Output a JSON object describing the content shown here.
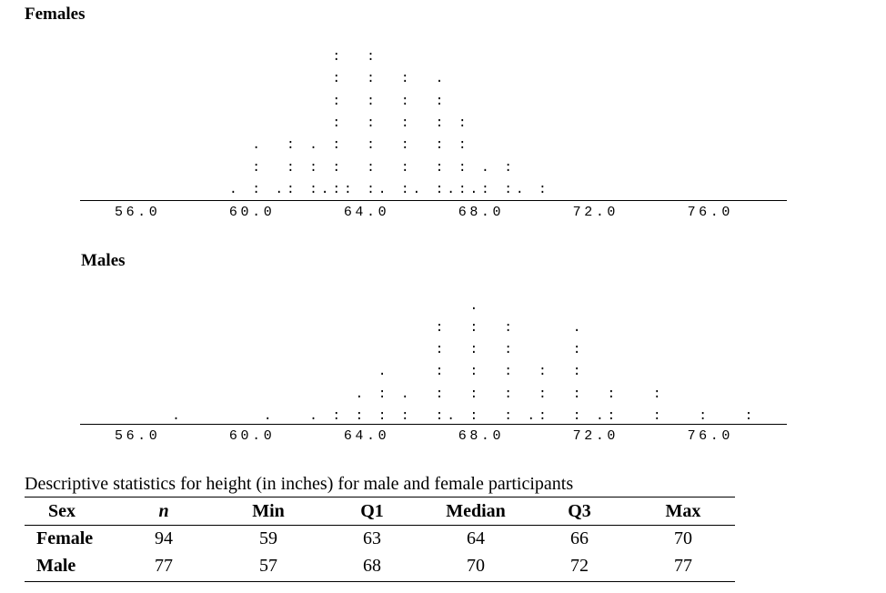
{
  "plots": {
    "females": {
      "title": "Females",
      "rows": [
        "                   :  :",
        "                   :  :  :  .",
        "                   :  :  :  :",
        "                   :  :  :  : :",
        "            .  : . :  :  :  : :",
        "            :  : : :  :  :  : : . :",
        "          . : .: :.:: :. :. :.:.: :. :"
      ],
      "axis_labels": "56.0      60.0      64.0      68.0      72.0      76.0"
    },
    "males": {
      "title": "Males",
      "rows": [
        "                               .",
        "                            :  :  :     .",
        "                            :  :  :     :",
        "                       .    :  :  :  :  :",
        "                     . : .  :  :  :  :  :  :   :",
        "     .       .   . : : : :  :. :  : .:  : .:   :   :   :"
      ],
      "axis_labels": "56.0      60.0      64.0      68.0      72.0      76.0"
    }
  },
  "table": {
    "caption": "Descriptive statistics for height (in inches) for male and female participants",
    "headers": [
      "Sex",
      "n",
      "Min",
      "Q1",
      "Median",
      "Q3",
      "Max"
    ],
    "rows": [
      [
        "Female",
        "94",
        "59",
        "63",
        "64",
        "66",
        "70"
      ],
      [
        "Male",
        "77",
        "57",
        "68",
        "70",
        "72",
        "77"
      ]
    ]
  }
}
